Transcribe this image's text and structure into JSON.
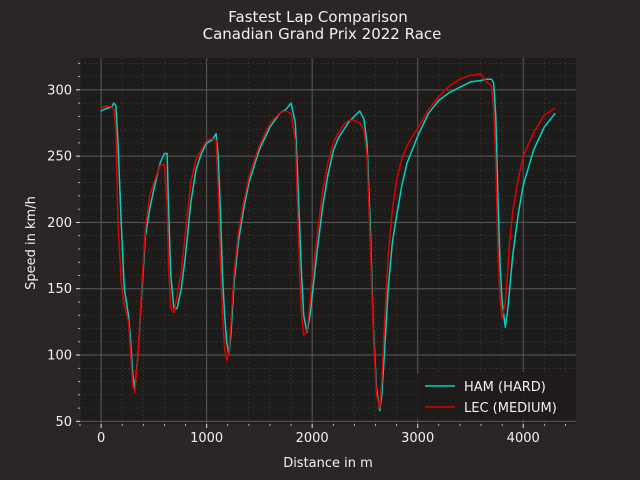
{
  "chart_data": {
    "type": "line",
    "title": "Fastest Lap Comparison",
    "subtitle": "Canadian Grand Prix 2022 Race",
    "xlabel": "Distance in m",
    "ylabel": "Speed in km/h",
    "xlim": [
      -200,
      4500
    ],
    "ylim": [
      48,
      324
    ],
    "xticks": [
      0,
      1000,
      2000,
      3000,
      4000
    ],
    "yticks": [
      50,
      100,
      150,
      200,
      250,
      300
    ],
    "grid": true,
    "legend_position": "bottom-right",
    "colors": {
      "figure_bg": "#292625",
      "axes_bg": "#1e1c1b",
      "text": "#f1f1f1",
      "grid_major": "#5a5a5a",
      "grid_minor": "#3c3a39",
      "legend_bg": "#1e1c1b"
    },
    "series": [
      {
        "name": "HAM (HARD)",
        "color": "#00d2be",
        "x": [
          0,
          50,
          100,
          120,
          140,
          160,
          190,
          220,
          260,
          280,
          300,
          320,
          350,
          380,
          420,
          460,
          500,
          560,
          600,
          625,
          640,
          660,
          690,
          720,
          760,
          800,
          850,
          900,
          950,
          1000,
          1050,
          1090,
          1110,
          1130,
          1150,
          1170,
          1190,
          1210,
          1230,
          1260,
          1300,
          1350,
          1400,
          1500,
          1600,
          1700,
          1750,
          1800,
          1840,
          1860,
          1880,
          1900,
          1920,
          1950,
          1980,
          2000,
          2050,
          2100,
          2150,
          2200,
          2250,
          2300,
          2350,
          2400,
          2450,
          2490,
          2520,
          2550,
          2580,
          2610,
          2640,
          2660,
          2680,
          2720,
          2760,
          2800,
          2850,
          2900,
          2950,
          3000,
          3100,
          3200,
          3300,
          3400,
          3500,
          3600,
          3650,
          3700,
          3720,
          3740,
          3760,
          3780,
          3800,
          3830,
          3850,
          3870,
          3900,
          3950,
          4000,
          4100,
          4200,
          4300
        ],
        "y": [
          284,
          286,
          287,
          290,
          288,
          260,
          200,
          150,
          130,
          110,
          85,
          75,
          100,
          140,
          190,
          210,
          225,
          245,
          252,
          252,
          210,
          160,
          135,
          135,
          150,
          175,
          215,
          240,
          252,
          260,
          262,
          267,
          250,
          210,
          160,
          130,
          110,
          100,
          115,
          155,
          185,
          210,
          230,
          255,
          272,
          283,
          285,
          290,
          275,
          240,
          200,
          160,
          130,
          117,
          130,
          145,
          180,
          212,
          236,
          254,
          264,
          270,
          276,
          280,
          284,
          278,
          260,
          200,
          120,
          75,
          58,
          70,
          95,
          150,
          185,
          205,
          228,
          245,
          255,
          265,
          282,
          292,
          298,
          302,
          306,
          307,
          308,
          308,
          305,
          280,
          220,
          170,
          140,
          121,
          132,
          148,
          175,
          205,
          228,
          255,
          272,
          282
        ]
      },
      {
        "name": "LEC (MEDIUM)",
        "color": "#dc0000",
        "x": [
          0,
          50,
          100,
          120,
          140,
          160,
          190,
          220,
          260,
          280,
          300,
          320,
          350,
          380,
          420,
          460,
          500,
          560,
          600,
          625,
          640,
          660,
          690,
          720,
          760,
          800,
          850,
          900,
          950,
          1000,
          1050,
          1090,
          1110,
          1130,
          1150,
          1170,
          1190,
          1210,
          1230,
          1260,
          1300,
          1350,
          1400,
          1500,
          1600,
          1700,
          1750,
          1800,
          1840,
          1860,
          1880,
          1900,
          1920,
          1950,
          1980,
          2000,
          2050,
          2100,
          2150,
          2200,
          2250,
          2300,
          2350,
          2400,
          2450,
          2490,
          2520,
          2550,
          2580,
          2610,
          2640,
          2660,
          2680,
          2720,
          2760,
          2800,
          2850,
          2900,
          2950,
          3000,
          3100,
          3200,
          3300,
          3400,
          3500,
          3600,
          3650,
          3700,
          3720,
          3740,
          3760,
          3780,
          3800,
          3830,
          3850,
          3870,
          3900,
          3950,
          4000,
          4100,
          4200,
          4300
        ],
        "y": [
          286,
          288,
          287,
          285,
          270,
          200,
          155,
          138,
          125,
          100,
          76,
          72,
          100,
          145,
          195,
          220,
          230,
          243,
          244,
          215,
          165,
          135,
          132,
          145,
          163,
          193,
          230,
          248,
          255,
          262,
          263,
          262,
          225,
          170,
          130,
          105,
          96,
          100,
          125,
          162,
          192,
          215,
          234,
          258,
          275,
          283,
          284,
          282,
          262,
          215,
          165,
          130,
          115,
          118,
          140,
          158,
          192,
          224,
          245,
          260,
          268,
          274,
          277,
          277,
          275,
          270,
          250,
          185,
          115,
          70,
          60,
          80,
          115,
          175,
          210,
          232,
          248,
          258,
          265,
          271,
          285,
          295,
          303,
          308,
          311,
          312,
          306,
          303,
          285,
          245,
          180,
          142,
          128,
          140,
          160,
          184,
          208,
          232,
          250,
          268,
          281,
          286
        ]
      }
    ]
  }
}
